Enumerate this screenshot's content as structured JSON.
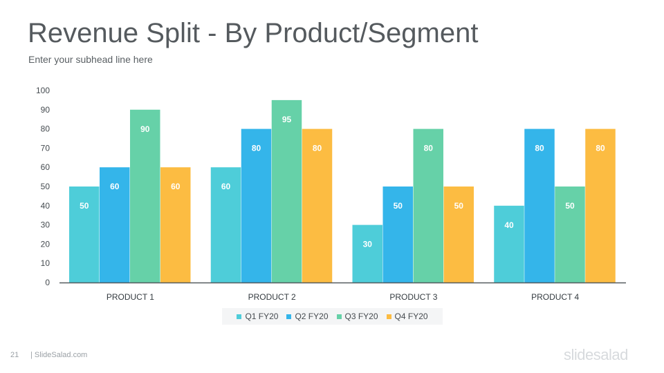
{
  "slide": {
    "title": "Revenue Split - By Product/Segment",
    "subtitle": "Enter your subhead line here",
    "page_number": "21",
    "footer_site": "| SlideSalad.com",
    "brand": "slidesalad"
  },
  "chart_data": {
    "type": "bar",
    "categories": [
      "PRODUCT 1",
      "PRODUCT 2",
      "PRODUCT 3",
      "PRODUCT 4"
    ],
    "series": [
      {
        "name": "Q1 FY20",
        "color": "#4ecdd9",
        "values": [
          50,
          60,
          30,
          40
        ]
      },
      {
        "name": "Q2 FY20",
        "color": "#34b5ea",
        "values": [
          60,
          80,
          50,
          80
        ]
      },
      {
        "name": "Q3 FY20",
        "color": "#66d1a8",
        "values": [
          90,
          95,
          80,
          50
        ]
      },
      {
        "name": "Q4 FY20",
        "color": "#fcbc42",
        "values": [
          60,
          80,
          50,
          80
        ]
      }
    ],
    "ylim": [
      0,
      100
    ],
    "yticks": [
      0,
      10,
      20,
      30,
      40,
      50,
      60,
      70,
      80,
      90,
      100
    ],
    "data_labels": true,
    "legend_position": "bottom",
    "grid": false
  }
}
